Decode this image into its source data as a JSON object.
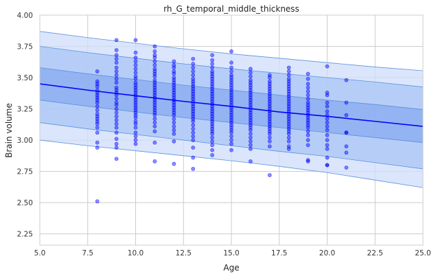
{
  "chart_data": {
    "type": "scatter",
    "title": "rh_G_temporal_middle_thickness",
    "xlabel": "Age",
    "ylabel": "Brain volume",
    "xlim": [
      5.0,
      25.0
    ],
    "ylim": [
      2.16,
      4.0
    ],
    "x_ticks": [
      5.0,
      7.5,
      10.0,
      12.5,
      15.0,
      17.5,
      20.0,
      22.5,
      25.0
    ],
    "x_tick_labels": [
      "5.0",
      "7.5",
      "10.0",
      "12.5",
      "15.0",
      "17.5",
      "20.0",
      "22.5",
      "25.0"
    ],
    "y_ticks": [
      2.25,
      2.5,
      2.75,
      3.0,
      3.25,
      3.5,
      3.75,
      4.0
    ],
    "y_tick_labels": [
      "2.25",
      "2.50",
      "2.75",
      "3.00",
      "3.25",
      "3.50",
      "3.75",
      "4.00"
    ],
    "grid": true,
    "colors": {
      "points": "#0000ff",
      "line": "#0000ff",
      "band_outer": "#cfdefb",
      "band_mid": "#a9c5f5",
      "band_inner": "#87aaf0",
      "band_edge": "#5b8fe0",
      "grid": "#cccccc",
      "frame": "#cccccc"
    },
    "fit_line": {
      "x": [
        5,
        7.5,
        10,
        12.5,
        15,
        17.5,
        20,
        22.5,
        25
      ],
      "y": [
        3.45,
        3.4,
        3.355,
        3.31,
        3.27,
        3.225,
        3.19,
        3.15,
        3.11
      ]
    },
    "bands": [
      {
        "level": "outer",
        "upper": [
          3.87,
          3.82,
          3.775,
          3.73,
          3.69,
          3.655,
          3.62,
          3.585,
          3.555
        ],
        "lower": [
          3.0,
          2.955,
          2.915,
          2.875,
          2.835,
          2.79,
          2.74,
          2.68,
          2.62
        ]
      },
      {
        "level": "mid",
        "upper": [
          3.75,
          3.7,
          3.655,
          3.61,
          3.57,
          3.535,
          3.5,
          3.465,
          3.425
        ],
        "lower": [
          3.14,
          3.09,
          3.045,
          3.0,
          2.955,
          2.91,
          2.87,
          2.82,
          2.77
        ]
      },
      {
        "level": "inner",
        "upper": [
          3.58,
          3.53,
          3.485,
          3.44,
          3.4,
          3.36,
          3.32,
          3.285,
          3.245
        ],
        "lower": [
          3.32,
          3.27,
          3.225,
          3.18,
          3.14,
          3.1,
          3.06,
          3.02,
          2.98
        ]
      }
    ],
    "points": [
      {
        "x": 8,
        "y": [
          3.55,
          3.47,
          3.45,
          3.43,
          3.4,
          3.38,
          3.36,
          3.34,
          3.32,
          3.3,
          3.27,
          3.24,
          3.21,
          3.19,
          3.17,
          3.15,
          3.13,
          3.1,
          3.06,
          2.98,
          2.94,
          2.51
        ]
      },
      {
        "x": 9,
        "y": [
          3.8,
          3.72,
          3.68,
          3.65,
          3.62,
          3.58,
          3.55,
          3.52,
          3.49,
          3.46,
          3.42,
          3.4,
          3.38,
          3.36,
          3.33,
          3.3,
          3.28,
          3.25,
          3.22,
          3.19,
          3.16,
          3.13,
          3.1,
          3.06,
          3.01,
          2.97,
          2.94,
          2.85
        ]
      },
      {
        "x": 10,
        "y": [
          3.8,
          3.7,
          3.66,
          3.63,
          3.6,
          3.57,
          3.54,
          3.51,
          3.49,
          3.46,
          3.44,
          3.42,
          3.4,
          3.38,
          3.36,
          3.34,
          3.32,
          3.3,
          3.28,
          3.26,
          3.24,
          3.22,
          3.2,
          3.18,
          3.15,
          3.13,
          3.1,
          3.06,
          3.03,
          3.0,
          2.97
        ]
      },
      {
        "x": 11,
        "y": [
          3.75,
          3.71,
          3.68,
          3.66,
          3.63,
          3.6,
          3.57,
          3.55,
          3.53,
          3.51,
          3.48,
          3.46,
          3.44,
          3.42,
          3.4,
          3.38,
          3.36,
          3.34,
          3.32,
          3.3,
          3.28,
          3.26,
          3.24,
          3.22,
          3.2,
          3.17,
          3.14,
          3.11,
          3.07,
          2.98,
          2.83
        ]
      },
      {
        "x": 12,
        "y": [
          3.63,
          3.6,
          3.58,
          3.55,
          3.53,
          3.5,
          3.48,
          3.46,
          3.44,
          3.42,
          3.4,
          3.38,
          3.36,
          3.34,
          3.32,
          3.3,
          3.28,
          3.26,
          3.24,
          3.22,
          3.2,
          3.17,
          3.14,
          3.11,
          3.08,
          3.05,
          2.99,
          2.81
        ]
      },
      {
        "x": 13,
        "y": [
          3.65,
          3.61,
          3.58,
          3.55,
          3.52,
          3.49,
          3.47,
          3.45,
          3.43,
          3.41,
          3.39,
          3.37,
          3.35,
          3.33,
          3.31,
          3.29,
          3.27,
          3.25,
          3.23,
          3.21,
          3.19,
          3.17,
          3.15,
          3.12,
          3.09,
          3.06,
          3.03,
          3.0,
          2.94,
          2.86,
          2.77
        ]
      },
      {
        "x": 14,
        "y": [
          3.68,
          3.64,
          3.61,
          3.58,
          3.55,
          3.53,
          3.51,
          3.49,
          3.47,
          3.45,
          3.43,
          3.41,
          3.39,
          3.37,
          3.35,
          3.33,
          3.31,
          3.29,
          3.27,
          3.25,
          3.23,
          3.21,
          3.19,
          3.17,
          3.15,
          3.13,
          3.11,
          3.09,
          3.07,
          3.05,
          3.02,
          2.99,
          2.96,
          2.92,
          2.88
        ]
      },
      {
        "x": 15,
        "y": [
          3.71,
          3.62,
          3.58,
          3.55,
          3.52,
          3.5,
          3.48,
          3.46,
          3.44,
          3.42,
          3.4,
          3.38,
          3.36,
          3.34,
          3.32,
          3.3,
          3.28,
          3.26,
          3.24,
          3.22,
          3.2,
          3.18,
          3.16,
          3.14,
          3.12,
          3.1,
          3.08,
          3.06,
          3.03,
          3.0,
          2.97,
          2.92
        ]
      },
      {
        "x": 16,
        "y": [
          3.57,
          3.54,
          3.51,
          3.48,
          3.46,
          3.44,
          3.42,
          3.4,
          3.38,
          3.36,
          3.34,
          3.32,
          3.3,
          3.28,
          3.26,
          3.24,
          3.22,
          3.2,
          3.18,
          3.16,
          3.14,
          3.12,
          3.1,
          3.08,
          3.05,
          3.02,
          2.99,
          2.96,
          2.93,
          2.83
        ]
      },
      {
        "x": 17,
        "y": [
          3.52,
          3.5,
          3.47,
          3.45,
          3.43,
          3.41,
          3.39,
          3.37,
          3.35,
          3.33,
          3.31,
          3.29,
          3.27,
          3.25,
          3.23,
          3.21,
          3.19,
          3.17,
          3.15,
          3.13,
          3.11,
          3.09,
          3.07,
          3.05,
          3.02,
          2.99,
          2.95,
          2.72
        ]
      },
      {
        "x": 18,
        "y": [
          3.58,
          3.55,
          3.52,
          3.49,
          3.47,
          3.45,
          3.43,
          3.41,
          3.39,
          3.37,
          3.35,
          3.33,
          3.31,
          3.29,
          3.27,
          3.25,
          3.23,
          3.21,
          3.19,
          3.17,
          3.15,
          3.13,
          3.11,
          3.09,
          3.07,
          3.05,
          3.02,
          2.99,
          2.95,
          2.93
        ]
      },
      {
        "x": 19,
        "y": [
          3.53,
          3.49,
          3.45,
          3.42,
          3.39,
          3.36,
          3.33,
          3.3,
          3.28,
          3.26,
          3.24,
          3.22,
          3.2,
          3.18,
          3.16,
          3.14,
          3.12,
          3.1,
          3.07,
          3.04,
          3.0,
          2.96,
          2.84,
          2.83
        ]
      },
      {
        "x": 20,
        "y": [
          3.59,
          3.38,
          3.36,
          3.3,
          3.27,
          3.23,
          3.2,
          3.17,
          3.14,
          3.11,
          3.08,
          3.04,
          3.0,
          2.96,
          2.93,
          2.86,
          2.8,
          2.8
        ]
      },
      {
        "x": 21,
        "y": [
          3.48,
          3.3,
          3.2,
          3.06,
          3.06,
          2.95,
          2.9,
          2.78
        ]
      }
    ]
  }
}
